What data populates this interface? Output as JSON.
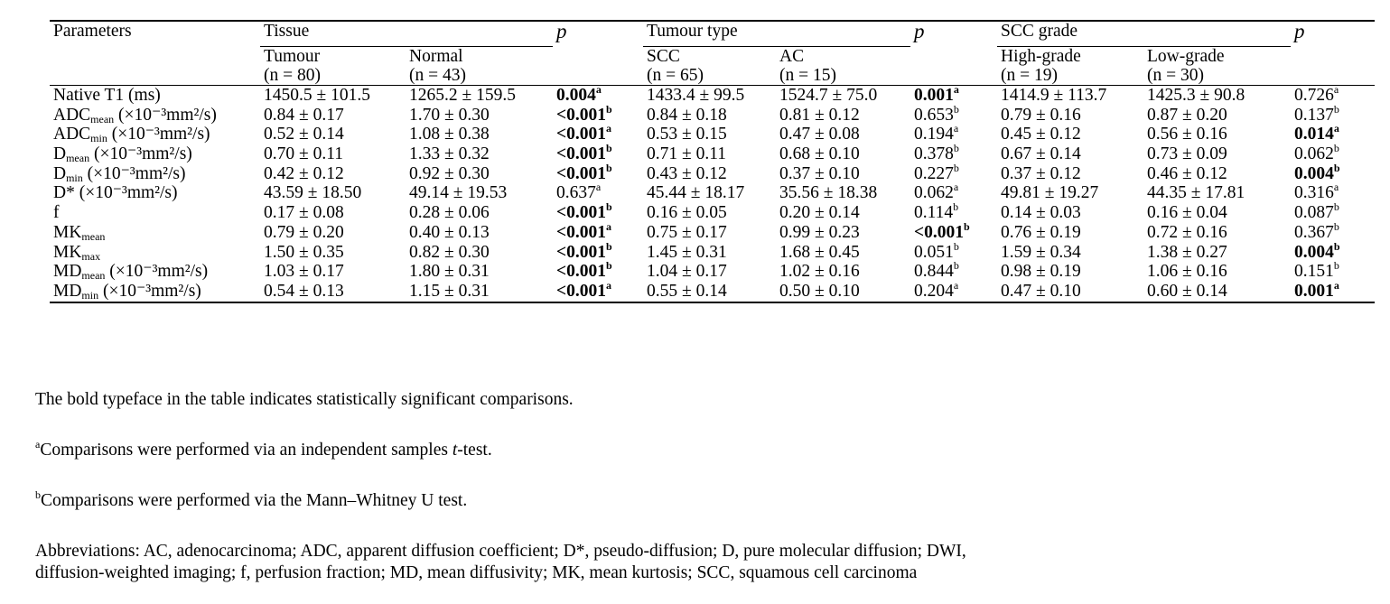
{
  "header": {
    "parameters": "Parameters",
    "tissue": "Tissue",
    "p": "p",
    "tumour_type": "Tumour type",
    "scc_grade": "SCC grade",
    "tumour": "Tumour",
    "tumour_n": "(n = 80)",
    "normal": "Normal",
    "normal_n": "(n = 43)",
    "scc": "SCC",
    "scc_n": "(n = 65)",
    "ac": "AC",
    "ac_n": "(n = 15)",
    "high": "High-grade",
    "high_n": "(n = 19)",
    "low": "Low-grade",
    "low_n": "(n = 30)"
  },
  "rows": [
    {
      "name": "Native T1 (ms)",
      "sub": "",
      "rest": "",
      "tumour": "1450.5 ± 101.5",
      "normal": "1265.2 ± 159.5",
      "p1": "0.004",
      "p1s": "a",
      "p1b": true,
      "scc": "1433.4 ± 99.5",
      "ac": "1524.7 ± 75.0",
      "p2": "0.001",
      "p2s": "a",
      "p2b": true,
      "high": "1414.9 ± 113.7",
      "low": "1425.3 ± 90.8",
      "p3": "0.726",
      "p3s": "a",
      "p3b": false
    },
    {
      "name": "ADC",
      "sub": "mean",
      "rest": " (×10⁻³mm²/s)",
      "tumour": "0.84 ± 0.17",
      "normal": "1.70 ± 0.30",
      "p1": "<0.001",
      "p1s": "b",
      "p1b": true,
      "scc": "0.84 ± 0.18",
      "ac": "0.81 ± 0.12",
      "p2": "0.653",
      "p2s": "b",
      "p2b": false,
      "high": "0.79 ± 0.16",
      "low": "0.87 ± 0.20",
      "p3": "0.137",
      "p3s": "b",
      "p3b": false
    },
    {
      "name": "ADC",
      "sub": "min",
      "rest": " (×10⁻³mm²/s)",
      "tumour": "0.52 ± 0.14",
      "normal": "1.08 ± 0.38",
      "p1": "<0.001",
      "p1s": "a",
      "p1b": true,
      "scc": "0.53 ± 0.15",
      "ac": "0.47 ± 0.08",
      "p2": "0.194",
      "p2s": "a",
      "p2b": false,
      "high": "0.45 ± 0.12",
      "low": "0.56 ± 0.16",
      "p3": "0.014",
      "p3s": "a",
      "p3b": true
    },
    {
      "name": "D",
      "sub": "mean",
      "rest": " (×10⁻³mm²/s)",
      "tumour": "0.70 ± 0.11",
      "normal": "1.33 ± 0.32",
      "p1": "<0.001",
      "p1s": "b",
      "p1b": true,
      "scc": "0.71 ± 0.11",
      "ac": "0.68 ± 0.10",
      "p2": "0.378",
      "p2s": "b",
      "p2b": false,
      "high": "0.67 ± 0.14",
      "low": "0.73 ± 0.09",
      "p3": "0.062",
      "p3s": "b",
      "p3b": false
    },
    {
      "name": "D",
      "sub": "min",
      "rest": " (×10⁻³mm²/s)",
      "tumour": "0.42 ± 0.12",
      "normal": "0.92 ± 0.30",
      "p1": "<0.001",
      "p1s": "b",
      "p1b": true,
      "scc": "0.43 ± 0.12",
      "ac": "0.37 ± 0.10",
      "p2": "0.227",
      "p2s": "b",
      "p2b": false,
      "high": "0.37 ± 0.12",
      "low": "0.46 ± 0.12",
      "p3": "0.004",
      "p3s": "b",
      "p3b": true
    },
    {
      "name": "D* (×10⁻³mm²/s)",
      "sub": "",
      "rest": "",
      "tumour": "43.59 ± 18.50",
      "normal": "49.14 ± 19.53",
      "p1": "0.637",
      "p1s": "a",
      "p1b": false,
      "scc": "45.44 ± 18.17",
      "ac": "35.56 ± 18.38",
      "p2": "0.062",
      "p2s": "a",
      "p2b": false,
      "high": "49.81 ± 19.27",
      "low": "44.35 ± 17.81",
      "p3": "0.316",
      "p3s": "a",
      "p3b": false
    },
    {
      "name": "f",
      "sub": "",
      "rest": "",
      "tumour": "0.17 ± 0.08",
      "normal": "0.28 ± 0.06",
      "p1": "<0.001",
      "p1s": "b",
      "p1b": true,
      "scc": "0.16 ± 0.05",
      "ac": "0.20 ± 0.14",
      "p2": "0.114",
      "p2s": "b",
      "p2b": false,
      "high": "0.14 ± 0.03",
      "low": "0.16 ± 0.04",
      "p3": "0.087",
      "p3s": "b",
      "p3b": false
    },
    {
      "name": "MK",
      "sub": "mean",
      "rest": "",
      "tumour": "0.79 ± 0.20",
      "normal": "0.40 ± 0.13",
      "p1": "<0.001",
      "p1s": "a",
      "p1b": true,
      "scc": "0.75 ± 0.17",
      "ac": "0.99 ± 0.23",
      "p2": "<0.001",
      "p2s": "b",
      "p2b": true,
      "high": "0.76 ± 0.19",
      "low": "0.72 ± 0.16",
      "p3": "0.367",
      "p3s": "b",
      "p3b": false
    },
    {
      "name": "MK",
      "sub": "max",
      "rest": "",
      "tumour": "1.50 ± 0.35",
      "normal": "0.82 ± 0.30",
      "p1": "<0.001",
      "p1s": "b",
      "p1b": true,
      "scc": "1.45 ± 0.31",
      "ac": "1.68 ± 0.45",
      "p2": "0.051",
      "p2s": "b",
      "p2b": false,
      "high": "1.59 ± 0.34",
      "low": "1.38 ± 0.27",
      "p3": "0.004",
      "p3s": "b",
      "p3b": true
    },
    {
      "name": "MD",
      "sub": "mean",
      "rest": " (×10⁻³mm²/s)",
      "tumour": "1.03 ± 0.17",
      "normal": "1.80 ± 0.31",
      "p1": "<0.001",
      "p1s": "b",
      "p1b": true,
      "scc": "1.04 ± 0.17",
      "ac": "1.02 ± 0.16",
      "p2": "0.844",
      "p2s": "b",
      "p2b": false,
      "high": "0.98 ± 0.19",
      "low": "1.06 ± 0.16",
      "p3": "0.151",
      "p3s": "b",
      "p3b": false
    },
    {
      "name": "MD",
      "sub": "min",
      "rest": " (×10⁻³mm²/s)",
      "tumour": "0.54 ± 0.13",
      "normal": "1.15 ± 0.31",
      "p1": "<0.001",
      "p1s": "a",
      "p1b": true,
      "scc": "0.55 ± 0.14",
      "ac": "0.50 ± 0.10",
      "p2": "0.204",
      "p2s": "a",
      "p2b": false,
      "high": "0.47 ± 0.10",
      "low": "0.60 ± 0.14",
      "p3": "0.001",
      "p3s": "a",
      "p3b": true
    }
  ],
  "notes": {
    "bold": "The bold typeface in the table indicates statistically significant comparisons.",
    "a_mark": "a",
    "a_text_1": "Comparisons were performed via an independent samples ",
    "a_text_italic": "t",
    "a_text_2": "-test.",
    "b_mark": "b",
    "b_text": "Comparisons were performed via the Mann–Whitney U test.",
    "abbr_line1": "Abbreviations: AC, adenocarcinoma; ADC, apparent diffusion coefficient; D*, pseudo-diffusion; D, pure molecular diffusion; DWI,",
    "abbr_line2": "diffusion-weighted imaging; f, perfusion fraction; MD, mean diffusivity; MK, mean kurtosis; SCC, squamous cell carcinoma"
  }
}
